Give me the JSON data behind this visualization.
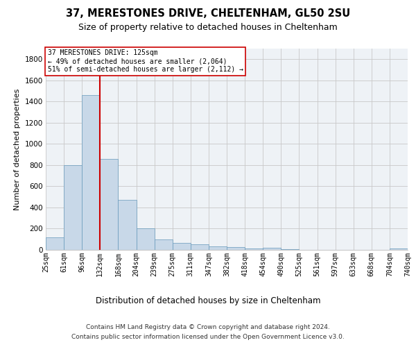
{
  "title1": "37, MERESTONES DRIVE, CHELTENHAM, GL50 2SU",
  "title2": "Size of property relative to detached houses in Cheltenham",
  "xlabel": "Distribution of detached houses by size in Cheltenham",
  "ylabel": "Number of detached properties",
  "footer1": "Contains HM Land Registry data © Crown copyright and database right 2024.",
  "footer2": "Contains public sector information licensed under the Open Government Licence v3.0.",
  "bin_labels": [
    "25sqm",
    "61sqm",
    "96sqm",
    "132sqm",
    "168sqm",
    "204sqm",
    "239sqm",
    "275sqm",
    "311sqm",
    "347sqm",
    "382sqm",
    "418sqm",
    "454sqm",
    "490sqm",
    "525sqm",
    "561sqm",
    "597sqm",
    "633sqm",
    "668sqm",
    "704sqm",
    "740sqm"
  ],
  "bar_values": [
    120,
    800,
    1460,
    860,
    475,
    200,
    100,
    65,
    50,
    35,
    25,
    15,
    20,
    5,
    3,
    2,
    1,
    1,
    1,
    14,
    0
  ],
  "bar_color": "#c8d8e8",
  "bar_edge_color": "#6699bb",
  "red_line_x": 3,
  "annotation_line1": "37 MERESTONES DRIVE: 125sqm",
  "annotation_line2": "← 49% of detached houses are smaller (2,064)",
  "annotation_line3": "51% of semi-detached houses are larger (2,112) →",
  "red_line_color": "#cc0000",
  "ylim_max": 1900,
  "yticks": [
    0,
    200,
    400,
    600,
    800,
    1000,
    1200,
    1400,
    1600,
    1800
  ],
  "grid_color": "#c8c8c8",
  "bg_color": "#eef2f6",
  "title1_fontsize": 10.5,
  "title2_fontsize": 9,
  "ylabel_fontsize": 8,
  "xlabel_fontsize": 8.5,
  "tick_fontsize": 7,
  "ytick_fontsize": 7.5,
  "annot_fontsize": 7,
  "footer_fontsize": 6.5
}
